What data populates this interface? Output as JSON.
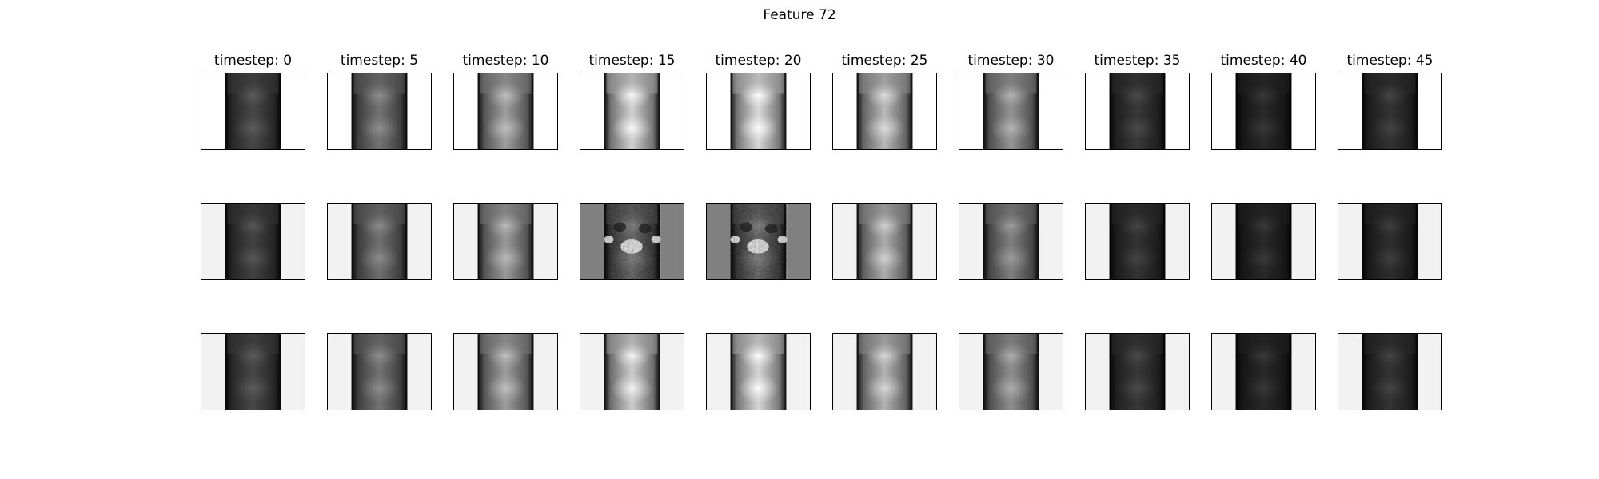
{
  "figure": {
    "title": "Feature 72",
    "columns": [
      {
        "label": "timestep: 0"
      },
      {
        "label": "timestep: 5"
      },
      {
        "label": "timestep: 10"
      },
      {
        "label": "timestep: 15"
      },
      {
        "label": "timestep: 20"
      },
      {
        "label": "timestep: 25"
      },
      {
        "label": "timestep: 30"
      },
      {
        "label": "timestep: 35"
      },
      {
        "label": "timestep: 40"
      },
      {
        "label": "timestep: 45"
      }
    ],
    "rows": [
      {
        "background": "#ffffff",
        "brightness": [
          0.28,
          0.45,
          0.62,
          0.82,
          0.85,
          0.72,
          0.58,
          0.22,
          0.16,
          0.2
        ],
        "noisy": [
          false,
          false,
          false,
          false,
          false,
          false,
          false,
          false,
          false,
          false
        ]
      },
      {
        "background": "#f2f2f2",
        "brightness": [
          0.26,
          0.44,
          0.6,
          0.45,
          0.45,
          0.68,
          0.5,
          0.2,
          0.16,
          0.18
        ],
        "noisy": [
          false,
          false,
          false,
          true,
          true,
          false,
          false,
          false,
          false,
          false
        ]
      },
      {
        "background": "#f2f2f2",
        "brightness": [
          0.28,
          0.45,
          0.62,
          0.8,
          0.84,
          0.7,
          0.56,
          0.22,
          0.16,
          0.2
        ],
        "noisy": [
          false,
          false,
          false,
          false,
          false,
          false,
          false,
          false,
          false,
          false
        ]
      }
    ]
  }
}
